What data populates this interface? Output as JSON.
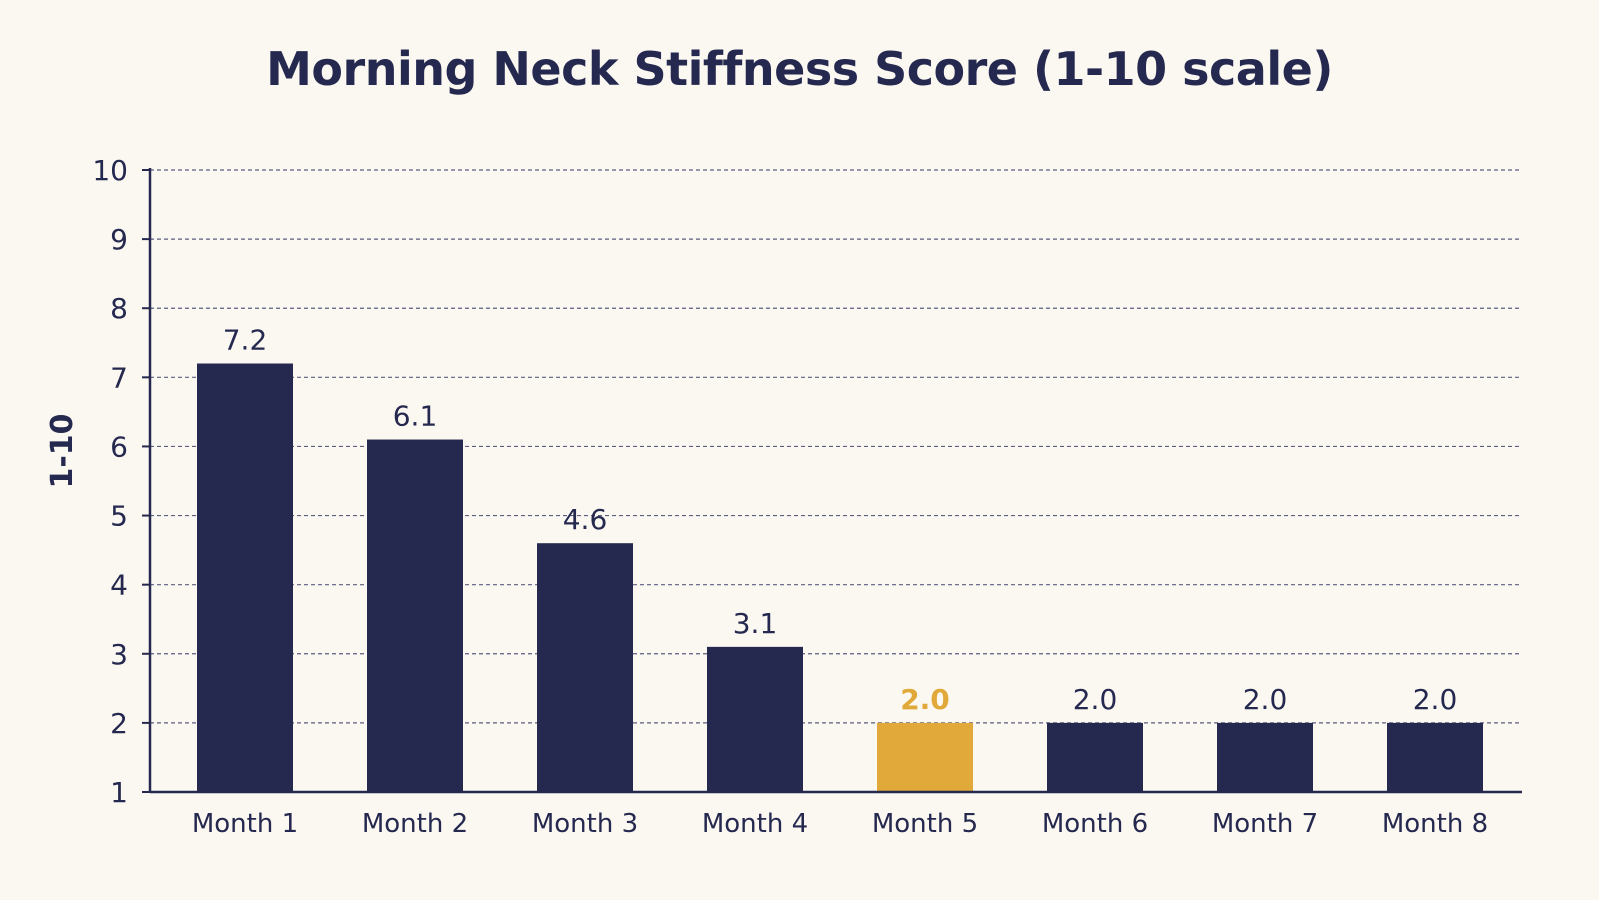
{
  "chart_data": {
    "type": "bar",
    "title": "Morning Neck Stiffness Score (1-10 scale)",
    "xlabel": "",
    "ylabel": "1-10",
    "categories": [
      "Month 1",
      "Month 2",
      "Month 3",
      "Month 4",
      "Month 5",
      "Month 6",
      "Month 7",
      "Month 8"
    ],
    "values": [
      7.2,
      6.1,
      4.6,
      3.1,
      2.0,
      2.0,
      2.0,
      2.0
    ],
    "value_labels": [
      "7.2",
      "6.1",
      "4.6",
      "3.1",
      "2.0",
      "2.0",
      "2.0",
      "2.0"
    ],
    "ylim": [
      1,
      10
    ],
    "yticks": [
      1,
      2,
      3,
      4,
      5,
      6,
      7,
      8,
      9,
      10
    ],
    "grid": true,
    "highlight_index": 4,
    "colors": {
      "bar": "#25284f",
      "highlight": "#e0a93a",
      "text": "#25284f",
      "grid": "#5a5d80",
      "background": "#fbf8f1"
    }
  }
}
